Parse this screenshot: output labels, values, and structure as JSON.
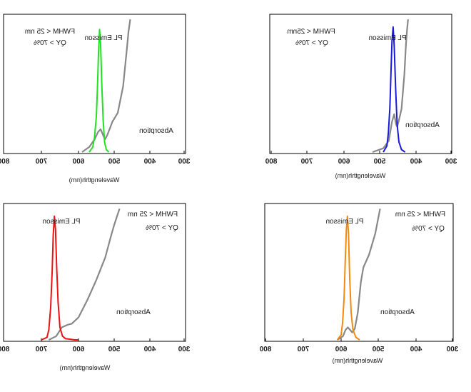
{
  "chart_data": [
    {
      "type": "line",
      "xlabel": "Wavelengthh(nm)",
      "xlim": [
        800,
        300
      ],
      "x_reversed_visual": true,
      "xticks": [
        800,
        700,
        600,
        500,
        400,
        300
      ],
      "tick_labels": [
        "800",
        "700",
        "600",
        "500",
        "400",
        "300"
      ],
      "annotations": {
        "line1": "FWHM < 25 nm",
        "line2": "QY > 70%",
        "pl_label": "PL Emisson",
        "abs_label": "Absorption"
      },
      "series": [
        {
          "name": "PL Emisson",
          "color": "#22e022",
          "x": [
            570,
            560,
            555,
            550,
            547,
            544,
            541,
            538,
            535,
            531,
            527,
            522,
            515
          ],
          "y": [
            0.0,
            0.04,
            0.12,
            0.28,
            0.5,
            0.78,
            0.97,
            0.85,
            0.56,
            0.26,
            0.08,
            0.02,
            0.0
          ]
        },
        {
          "name": "Absorption",
          "color": "#888888",
          "x": [
            590,
            570,
            555,
            545,
            538,
            532,
            526,
            520,
            505,
            490,
            475,
            465,
            460,
            455
          ],
          "y": [
            0.0,
            0.04,
            0.1,
            0.16,
            0.18,
            0.14,
            0.1,
            0.13,
            0.24,
            0.31,
            0.52,
            0.8,
            0.95,
            1.05
          ]
        }
      ]
    },
    {
      "type": "line",
      "xlabel": "Wavelengthh(nm)",
      "xlim": [
        800,
        300
      ],
      "x_reversed_visual": true,
      "xticks": [
        800,
        700,
        600,
        500,
        400,
        300
      ],
      "tick_labels": [
        "800",
        "700",
        "600",
        "500",
        "400",
        "300"
      ],
      "annotations": {
        "line1": "FWHM < 25nm",
        "line2": "QY > 70%",
        "pl_label": "PL Emisson",
        "abs_label": "Absorption"
      },
      "series": [
        {
          "name": "PL Emisson",
          "color": "#1a1adb",
          "x": [
            490,
            480,
            476,
            472,
            469,
            466,
            463,
            460,
            456,
            452,
            447,
            440,
            430
          ],
          "y": [
            0.0,
            0.05,
            0.15,
            0.35,
            0.62,
            0.88,
            0.99,
            0.84,
            0.5,
            0.22,
            0.08,
            0.02,
            0.0
          ]
        },
        {
          "name": "Absorption",
          "color": "#888888",
          "x": [
            520,
            490,
            475,
            466,
            460,
            455,
            452,
            448,
            440,
            432,
            428,
            425,
            422
          ],
          "y": [
            0.0,
            0.03,
            0.09,
            0.24,
            0.3,
            0.22,
            0.2,
            0.24,
            0.34,
            0.62,
            0.84,
            0.96,
            1.05
          ]
        }
      ]
    },
    {
      "type": "line",
      "xlabel": "Wavelengthh(nm)",
      "xlim": [
        800,
        300
      ],
      "x_reversed_visual": true,
      "xticks": [
        800,
        700,
        600,
        500,
        400,
        300
      ],
      "tick_labels": [
        "800",
        "700",
        "600",
        "500",
        "400",
        "300"
      ],
      "annotations": {
        "line1": "FWHM < 25 nm",
        "line2": "QY > 70%",
        "pl_label": "PL Emisson",
        "abs_label": "Absorption"
      },
      "series": [
        {
          "name": "PL Emisson",
          "color": "#ee1111",
          "x": [
            700,
            685,
            680,
            675,
            671,
            668,
            665,
            662,
            659,
            655,
            650,
            643,
            635,
            610,
            600
          ],
          "y": [
            0.0,
            0.02,
            0.08,
            0.26,
            0.55,
            0.84,
            0.99,
            0.88,
            0.6,
            0.3,
            0.1,
            0.03,
            0.01,
            0.0,
            0.0
          ]
        },
        {
          "name": "Absorption",
          "color": "#888888",
          "x": [
            680,
            660,
            645,
            630,
            618,
            600,
            575,
            550,
            525,
            510,
            500,
            485
          ],
          "y": [
            0.0,
            0.03,
            0.1,
            0.12,
            0.13,
            0.18,
            0.32,
            0.48,
            0.66,
            0.82,
            0.92,
            1.05
          ]
        }
      ]
    },
    {
      "type": "line",
      "xlabel": "Wavelengthh(nm)",
      "xlim": [
        800,
        300
      ],
      "x_reversed_visual": true,
      "xticks": [
        800,
        700,
        600,
        500,
        400,
        300
      ],
      "tick_labels": [
        "800",
        "700",
        "600",
        "500",
        "400",
        "300"
      ],
      "annotations": {
        "line1": "FWHM < 25 nm",
        "line2": "QY > 70%",
        "pl_label": "PL Emisson",
        "abs_label": "Absorption"
      },
      "series": [
        {
          "name": "PL Emisson",
          "color": "#f28a12",
          "x": [
            610,
            600,
            596,
            592,
            589,
            586,
            583,
            580,
            577,
            573,
            568,
            560,
            550
          ],
          "y": [
            0.0,
            0.04,
            0.14,
            0.34,
            0.62,
            0.88,
            0.99,
            0.84,
            0.5,
            0.22,
            0.08,
            0.02,
            0.0
          ]
        },
        {
          "name": "Absorption",
          "color": "#888888",
          "x": [
            610,
            595,
            588,
            582,
            576,
            570,
            563,
            555,
            547,
            540,
            525,
            508,
            495
          ],
          "y": [
            0.0,
            0.03,
            0.08,
            0.1,
            0.08,
            0.06,
            0.09,
            0.22,
            0.46,
            0.58,
            0.68,
            0.85,
            1.05
          ]
        }
      ]
    }
  ]
}
